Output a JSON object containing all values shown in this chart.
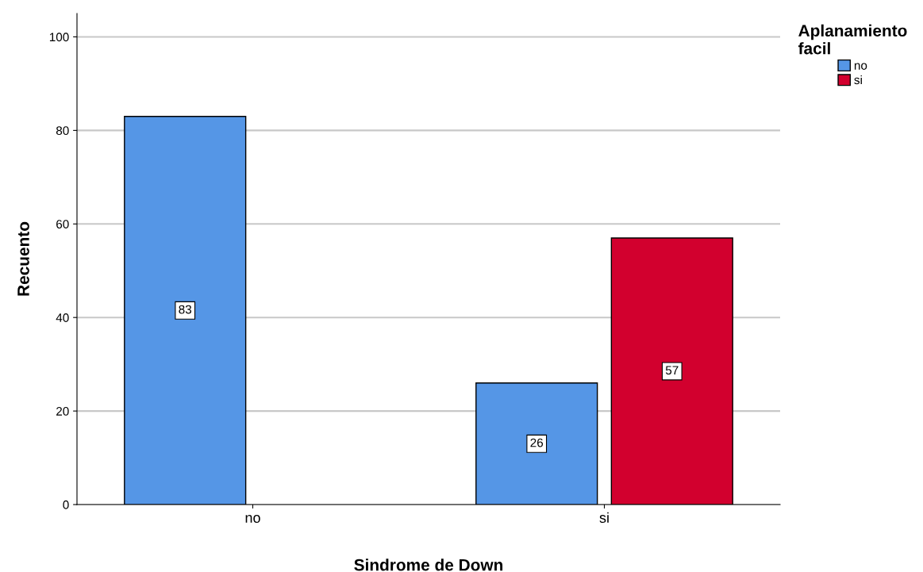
{
  "chart_data": {
    "type": "bar",
    "xlabel": "Sindrome de Down",
    "ylabel": "Recuento",
    "legend_title": "Aplanamiento\nfacil",
    "categories": [
      "no",
      "si"
    ],
    "series": [
      {
        "name": "no",
        "color": "#5596e6",
        "values": [
          83,
          26
        ]
      },
      {
        "name": "si",
        "color": "#d2002e",
        "values": [
          null,
          57
        ]
      }
    ],
    "ylim": [
      0,
      105
    ],
    "yticks": [
      0,
      20,
      40,
      60,
      80,
      100
    ],
    "grid": "y",
    "legend": "top right",
    "data_labels": true
  }
}
